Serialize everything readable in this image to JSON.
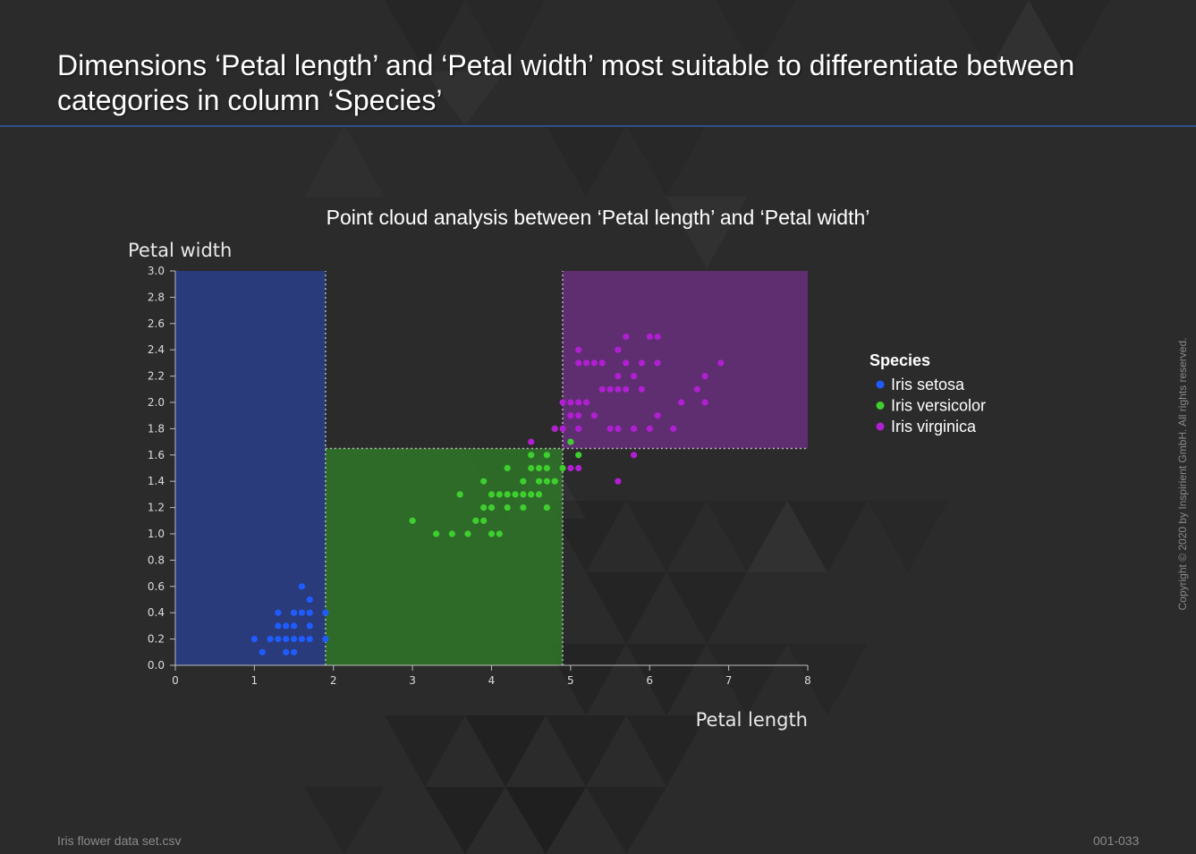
{
  "slide": {
    "title": "Dimensions ‘Petal length’ and ‘Petal width’ most suitable to differentiate between categories in column ‘Species’",
    "footer_left": "Iris flower data set.csv",
    "footer_right": "001-033",
    "copyright": "Copyright © 2020 by Inspirient GmbH. All rights reserved."
  },
  "colors": {
    "background": "#2b2b2b",
    "setosa": "#1f5cff",
    "versicolor": "#3ecf2e",
    "virginica": "#b01fd1",
    "region_setosa": "#2a3f8c",
    "region_versicolor": "#2f7a2a",
    "region_virginica": "#6a2f80"
  },
  "chart_data": {
    "type": "scatter",
    "title": "Point cloud analysis between ‘Petal length’ and ‘Petal width’",
    "xlabel": "Petal length",
    "ylabel": "Petal width",
    "xlim": [
      0,
      8
    ],
    "ylim": [
      0,
      3.0
    ],
    "x_ticks": [
      "0",
      "1",
      "2",
      "3",
      "4",
      "5",
      "6",
      "7",
      "8"
    ],
    "y_ticks": [
      "0.0",
      "0.2",
      "0.4",
      "0.6",
      "0.8",
      "1.0",
      "1.2",
      "1.4",
      "1.6",
      "1.8",
      "2.0",
      "2.2",
      "2.4",
      "2.6",
      "2.8",
      "3.0"
    ],
    "grid": false,
    "legend_title": "Species",
    "legend_position": "right",
    "regions": [
      {
        "series": "Iris setosa",
        "x": [
          0,
          1.9
        ],
        "y": [
          0,
          3.0
        ]
      },
      {
        "series": "Iris versicolor",
        "x": [
          1.9,
          4.9
        ],
        "y": [
          0,
          1.65
        ]
      },
      {
        "series": "Iris virginica",
        "x": [
          4.9,
          8.0
        ],
        "y": [
          1.65,
          3.0
        ]
      }
    ],
    "dividers": [
      {
        "x1": 1.9,
        "y1": 0,
        "x2": 1.9,
        "y2": 3.0
      },
      {
        "x1": 4.9,
        "y1": 0,
        "x2": 4.9,
        "y2": 3.0
      },
      {
        "x1": 1.9,
        "y1": 1.65,
        "x2": 8.0,
        "y2": 1.65
      }
    ],
    "series": [
      {
        "name": "Iris setosa",
        "color": "#1f5cff",
        "points": [
          [
            1.0,
            0.2
          ],
          [
            1.1,
            0.1
          ],
          [
            1.2,
            0.2
          ],
          [
            1.3,
            0.2
          ],
          [
            1.3,
            0.3
          ],
          [
            1.3,
            0.4
          ],
          [
            1.4,
            0.1
          ],
          [
            1.4,
            0.2
          ],
          [
            1.4,
            0.3
          ],
          [
            1.5,
            0.1
          ],
          [
            1.5,
            0.2
          ],
          [
            1.5,
            0.3
          ],
          [
            1.5,
            0.4
          ],
          [
            1.6,
            0.2
          ],
          [
            1.6,
            0.4
          ],
          [
            1.6,
            0.6
          ],
          [
            1.7,
            0.2
          ],
          [
            1.7,
            0.3
          ],
          [
            1.7,
            0.4
          ],
          [
            1.7,
            0.5
          ],
          [
            1.9,
            0.2
          ],
          [
            1.9,
            0.4
          ]
        ]
      },
      {
        "name": "Iris versicolor",
        "color": "#3ecf2e",
        "points": [
          [
            3.0,
            1.1
          ],
          [
            3.3,
            1.0
          ],
          [
            3.5,
            1.0
          ],
          [
            3.6,
            1.3
          ],
          [
            3.7,
            1.0
          ],
          [
            3.8,
            1.1
          ],
          [
            3.9,
            1.1
          ],
          [
            3.9,
            1.2
          ],
          [
            3.9,
            1.4
          ],
          [
            4.0,
            1.0
          ],
          [
            4.0,
            1.2
          ],
          [
            4.0,
            1.3
          ],
          [
            4.1,
            1.0
          ],
          [
            4.1,
            1.3
          ],
          [
            4.2,
            1.2
          ],
          [
            4.2,
            1.3
          ],
          [
            4.2,
            1.5
          ],
          [
            4.3,
            1.3
          ],
          [
            4.4,
            1.2
          ],
          [
            4.4,
            1.3
          ],
          [
            4.4,
            1.4
          ],
          [
            4.5,
            1.3
          ],
          [
            4.5,
            1.5
          ],
          [
            4.5,
            1.6
          ],
          [
            4.6,
            1.3
          ],
          [
            4.6,
            1.4
          ],
          [
            4.6,
            1.5
          ],
          [
            4.7,
            1.2
          ],
          [
            4.7,
            1.4
          ],
          [
            4.7,
            1.5
          ],
          [
            4.7,
            1.6
          ],
          [
            4.8,
            1.4
          ],
          [
            4.8,
            1.8
          ],
          [
            4.9,
            1.5
          ],
          [
            5.0,
            1.7
          ],
          [
            5.1,
            1.6
          ]
        ]
      },
      {
        "name": "Iris virginica",
        "color": "#b01fd1",
        "points": [
          [
            4.5,
            1.7
          ],
          [
            4.8,
            1.8
          ],
          [
            4.9,
            1.8
          ],
          [
            4.9,
            2.0
          ],
          [
            5.0,
            1.5
          ],
          [
            5.0,
            1.9
          ],
          [
            5.0,
            2.0
          ],
          [
            5.1,
            1.5
          ],
          [
            5.1,
            1.8
          ],
          [
            5.1,
            1.9
          ],
          [
            5.1,
            2.0
          ],
          [
            5.1,
            2.3
          ],
          [
            5.1,
            2.4
          ],
          [
            5.2,
            2.0
          ],
          [
            5.2,
            2.3
          ],
          [
            5.3,
            1.9
          ],
          [
            5.3,
            2.3
          ],
          [
            5.4,
            2.1
          ],
          [
            5.4,
            2.3
          ],
          [
            5.5,
            1.8
          ],
          [
            5.5,
            2.1
          ],
          [
            5.6,
            1.4
          ],
          [
            5.6,
            1.8
          ],
          [
            5.6,
            2.1
          ],
          [
            5.6,
            2.2
          ],
          [
            5.6,
            2.4
          ],
          [
            5.7,
            2.1
          ],
          [
            5.7,
            2.3
          ],
          [
            5.7,
            2.5
          ],
          [
            5.8,
            1.6
          ],
          [
            5.8,
            1.8
          ],
          [
            5.8,
            2.2
          ],
          [
            5.9,
            2.1
          ],
          [
            5.9,
            2.3
          ],
          [
            6.0,
            1.8
          ],
          [
            6.0,
            2.5
          ],
          [
            6.1,
            1.9
          ],
          [
            6.1,
            2.3
          ],
          [
            6.1,
            2.5
          ],
          [
            6.3,
            1.8
          ],
          [
            6.4,
            2.0
          ],
          [
            6.6,
            2.1
          ],
          [
            6.7,
            2.0
          ],
          [
            6.7,
            2.2
          ],
          [
            6.9,
            2.3
          ]
        ]
      }
    ]
  }
}
